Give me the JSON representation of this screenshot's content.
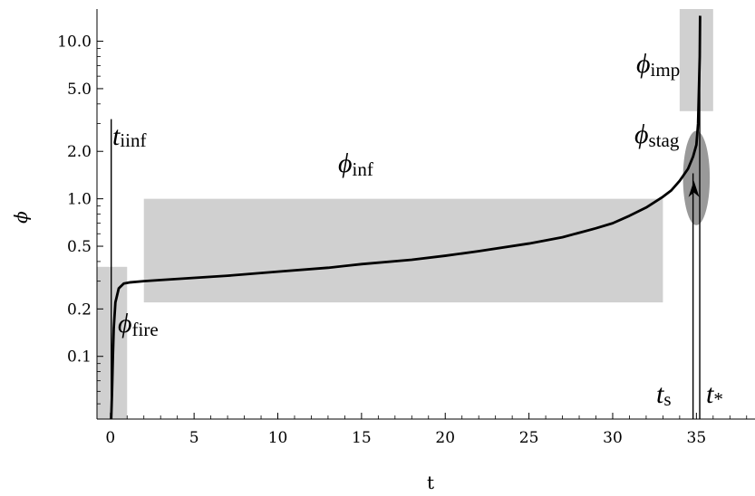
{
  "chart_data": {
    "type": "line",
    "title": "",
    "xlabel": "t",
    "ylabel": "ϕ",
    "xlim": [
      -0.8,
      38.5
    ],
    "ylim": [
      0.04,
      16
    ],
    "y_scale": "log",
    "grid": false,
    "x_ticks": [
      0,
      5,
      10,
      15,
      20,
      25,
      30,
      35
    ],
    "y_ticks": [
      0.1,
      0.2,
      0.5,
      1.0,
      2.0,
      5.0,
      10.0
    ],
    "y_tick_labels": [
      "0.1",
      "0.2",
      "0.5",
      "1.0",
      "2.0",
      "5.0",
      "10.0"
    ],
    "series": [
      {
        "x": [
          0.05,
          0.1,
          0.15,
          0.2,
          0.3,
          0.5,
          0.8,
          1.2,
          2,
          3,
          5,
          7,
          10,
          13,
          15,
          18,
          20,
          22,
          25,
          27,
          29,
          30,
          31,
          32,
          33,
          33.5,
          34,
          34.5,
          34.8,
          35.0,
          35.1,
          35.2,
          35.22
        ],
        "y": [
          0.04,
          0.06,
          0.1,
          0.15,
          0.22,
          0.27,
          0.29,
          0.295,
          0.3,
          0.305,
          0.315,
          0.325,
          0.345,
          0.365,
          0.385,
          0.41,
          0.435,
          0.465,
          0.52,
          0.57,
          0.65,
          0.7,
          0.78,
          0.88,
          1.03,
          1.13,
          1.3,
          1.55,
          1.85,
          2.2,
          3.0,
          8.0,
          14.5
        ],
        "color": "#000000"
      }
    ],
    "regions": [
      {
        "name": "fire",
        "x": [
          -0.8,
          1.0
        ],
        "y": [
          0.04,
          0.37
        ],
        "color": "#d0d0d0"
      },
      {
        "name": "inf",
        "x": [
          2.0,
          33.0
        ],
        "y": [
          0.22,
          1.0
        ],
        "color": "#d0d0d0"
      },
      {
        "name": "imp",
        "x": [
          34.0,
          36.0
        ],
        "y": [
          3.6,
          16
        ],
        "color": "#d0d0d0"
      }
    ],
    "stagnation_ellipse": {
      "x": 35.0,
      "y": 1.4,
      "rx": 0.8,
      "ry_y": [
        0.68,
        2.7
      ],
      "color": "#999999"
    },
    "vertical_lines": [
      {
        "name": "t_iinf",
        "x": 0.05,
        "y_top": 3.2
      },
      {
        "name": "t_s",
        "x": 34.8,
        "y_top": 1.45
      },
      {
        "name": "t_star",
        "x": 35.2,
        "y_top": 14.5
      }
    ],
    "arrow": {
      "x": 34.85,
      "y_from": 0.9,
      "y_to": 1.3
    },
    "annotations": {
      "t_iinf": {
        "base": "t",
        "sub": "iinf"
      },
      "phi_inf": {
        "base": "ϕ",
        "sub": "inf"
      },
      "phi_fire": {
        "base": "ϕ",
        "sub": "fire"
      },
      "phi_stag": {
        "base": "ϕ",
        "sub": "stag"
      },
      "phi_imp": {
        "base": "ϕ",
        "sub": "imp"
      },
      "t_s": {
        "base": "t",
        "sub": "s"
      },
      "t_star": {
        "base": "t",
        "sub": "*"
      }
    }
  }
}
